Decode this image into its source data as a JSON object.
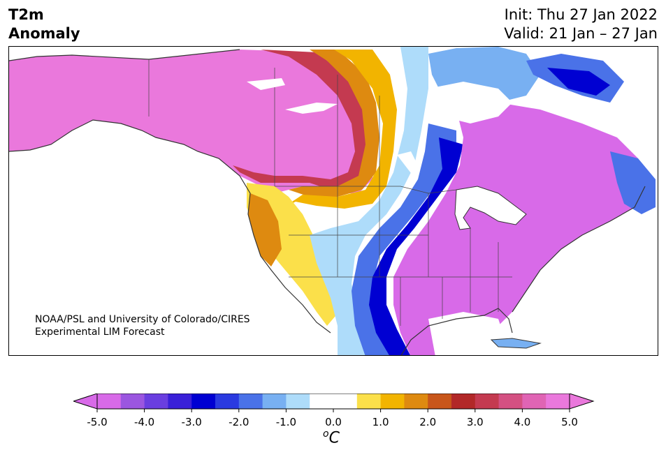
{
  "header": {
    "variable_line1": "T2m",
    "variable_line2": "Anomaly",
    "init": "Init: Thu 27 Jan 2022",
    "valid": "Valid: 21 Jan – 27 Jan"
  },
  "credit": {
    "line1": "NOAA/PSL and University of Colorado/CIRES",
    "line2": "Experimental LIM Forecast"
  },
  "colorbar": {
    "unit_base": "C",
    "unit_sup": "o",
    "tick_labels": [
      "-5.0",
      "-4.0",
      "-3.0",
      "-2.0",
      "-1.0",
      "0.0",
      "1.0",
      "2.0",
      "3.0",
      "4.0",
      "5.0"
    ],
    "colors": [
      "#d86ae8",
      "#9b56e0",
      "#6a3ee0",
      "#3a20d8",
      "#0000d2",
      "#2a3ae0",
      "#4a72e8",
      "#78b0f2",
      "#aedcfa",
      "#ffffff",
      "#ffffff",
      "#fbe04a",
      "#f2b400",
      "#de8a10",
      "#c8561a",
      "#b22828",
      "#c43a50",
      "#d45082",
      "#e064b4",
      "#ea78dc"
    ],
    "extend_low_color": "#d86ae8",
    "extend_high_color": "#ea78dc",
    "range": [
      -5.0,
      5.0
    ]
  },
  "map": {
    "region": "North America",
    "anomaly_colors": {
      "cold_extreme": "#d86ae8",
      "cold_strong": "#0000d2",
      "cold_moderate": "#4a72e8",
      "cold_weak": "#aedcfa",
      "neutral": "#ffffff",
      "warm_weak": "#fbe04a",
      "warm_moderate": "#de8a10",
      "warm_strong": "#b22828",
      "warm_extreme": "#ea78dc"
    }
  }
}
